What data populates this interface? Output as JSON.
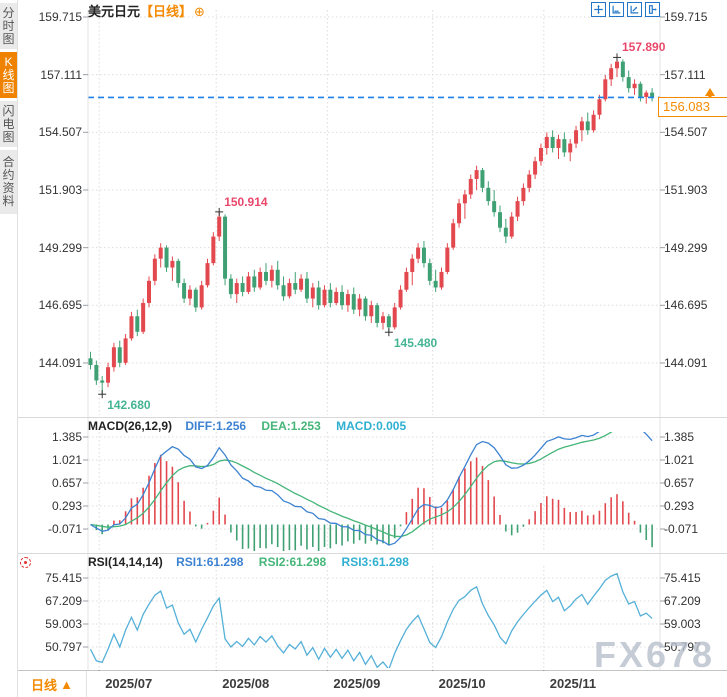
{
  "colors": {
    "up": "#e2484e",
    "down": "#3fa173",
    "ann_up": "#e9486b",
    "ann_down": "#45b493",
    "macd_diff": "#3d82d1",
    "macd_dea": "#45b578",
    "rsi_line": "#55b0d8",
    "accent_orange": "#f38a02",
    "icon_blue": "#2176c7",
    "price_line": "#1e80e8",
    "grid": "#dcdcdc"
  },
  "sidebar": {
    "items": [
      {
        "label": "分时图",
        "active": false
      },
      {
        "label": "K线图",
        "active": true
      },
      {
        "label": "闪电图",
        "active": false
      },
      {
        "label": "合约资料",
        "active": false
      }
    ]
  },
  "header": {
    "title": "美元日元",
    "period_tag": "【日线】",
    "expand_icon": "⊕"
  },
  "toolbar": {
    "items": [
      "pan",
      "fit",
      "scale",
      "exit"
    ]
  },
  "macd_panel": {
    "name": "MACD(26,12,9)",
    "diff": "DIFF:1.256",
    "dea": "DEA:1.253",
    "macd": "MACD:0.005"
  },
  "rsi_panel": {
    "name": "RSI(14,14,14)",
    "rsi1": "RSI1:61.298",
    "rsi2": "RSI2:61.298",
    "rsi3": "RSI3:61.298"
  },
  "bottom_bar": {
    "period": "日线",
    "arrow": "▲"
  },
  "price_box": {
    "label": "156.083"
  },
  "watermark": "FX678",
  "chart_data": {
    "type": "candlestick",
    "title": "美元日元【日线】",
    "y_axis_ticks": [
      "159.715",
      "157.111",
      "154.507",
      "151.903",
      "149.299",
      "146.695",
      "144.091"
    ],
    "x_axis_labels": [
      "2025/07",
      "2025/08",
      "2025/09",
      "2025/10",
      "2025/11"
    ],
    "month_start_indices": [
      2,
      22,
      41,
      59,
      78
    ],
    "current_price": 156.083,
    "annotations": [
      {
        "label": "142.680",
        "index": 2,
        "type": "low"
      },
      {
        "label": "150.914",
        "index": 22,
        "type": "high"
      },
      {
        "label": "145.480",
        "index": 51,
        "type": "low"
      },
      {
        "label": "157.890",
        "index": 90,
        "type": "high"
      }
    ],
    "candles_ohlc": [
      [
        144.3,
        144.6,
        143.8,
        144.0
      ],
      [
        144.0,
        144.2,
        143.1,
        143.3
      ],
      [
        143.3,
        143.5,
        142.68,
        143.2
      ],
      [
        143.2,
        144.1,
        143.0,
        143.9
      ],
      [
        143.9,
        145.0,
        143.7,
        144.8
      ],
      [
        144.8,
        145.1,
        143.9,
        144.1
      ],
      [
        144.1,
        145.4,
        144.0,
        145.2
      ],
      [
        145.2,
        146.4,
        145.1,
        146.2
      ],
      [
        146.2,
        146.5,
        145.3,
        145.5
      ],
      [
        145.5,
        147.0,
        145.4,
        146.8
      ],
      [
        146.8,
        148.0,
        146.6,
        147.8
      ],
      [
        147.8,
        149.0,
        147.6,
        148.8
      ],
      [
        148.8,
        149.5,
        148.4,
        149.3
      ],
      [
        149.3,
        149.4,
        148.2,
        148.4
      ],
      [
        148.4,
        148.9,
        147.8,
        148.7
      ],
      [
        148.7,
        148.8,
        147.5,
        147.7
      ],
      [
        147.7,
        147.9,
        146.8,
        147.0
      ],
      [
        147.0,
        147.6,
        146.7,
        147.4
      ],
      [
        147.4,
        147.5,
        146.4,
        146.6
      ],
      [
        146.6,
        147.8,
        146.5,
        147.6
      ],
      [
        147.6,
        148.8,
        147.5,
        148.6
      ],
      [
        148.6,
        150.0,
        148.5,
        149.8
      ],
      [
        149.8,
        150.914,
        149.6,
        150.7
      ],
      [
        150.7,
        150.8,
        147.6,
        147.9
      ],
      [
        147.9,
        148.1,
        147.0,
        147.2
      ],
      [
        147.2,
        147.9,
        146.8,
        147.7
      ],
      [
        147.7,
        148.0,
        147.1,
        147.3
      ],
      [
        147.3,
        148.2,
        147.2,
        148.0
      ],
      [
        148.0,
        148.3,
        147.3,
        147.5
      ],
      [
        147.5,
        148.4,
        147.4,
        148.2
      ],
      [
        148.2,
        148.6,
        147.6,
        147.8
      ],
      [
        147.8,
        148.5,
        147.5,
        148.3
      ],
      [
        148.3,
        148.7,
        147.4,
        147.6
      ],
      [
        147.6,
        148.0,
        146.9,
        147.1
      ],
      [
        147.1,
        147.9,
        147.0,
        147.7
      ],
      [
        147.7,
        148.2,
        147.2,
        147.4
      ],
      [
        147.4,
        148.1,
        147.3,
        147.9
      ],
      [
        147.9,
        148.2,
        146.8,
        147.0
      ],
      [
        147.0,
        147.7,
        146.6,
        147.5
      ],
      [
        147.5,
        147.8,
        146.5,
        146.7
      ],
      [
        146.7,
        147.6,
        146.6,
        147.4
      ],
      [
        147.4,
        147.7,
        146.6,
        146.8
      ],
      [
        146.8,
        147.5,
        146.7,
        147.3
      ],
      [
        147.3,
        147.6,
        146.5,
        146.7
      ],
      [
        146.7,
        147.4,
        146.4,
        147.2
      ],
      [
        147.2,
        147.5,
        146.3,
        146.5
      ],
      [
        146.5,
        147.2,
        146.2,
        147.0
      ],
      [
        147.0,
        147.1,
        146.0,
        146.2
      ],
      [
        146.2,
        146.9,
        145.9,
        146.7
      ],
      [
        146.7,
        146.8,
        145.7,
        145.9
      ],
      [
        145.9,
        146.4,
        145.6,
        146.2
      ],
      [
        146.2,
        146.3,
        145.48,
        145.7
      ],
      [
        145.7,
        146.8,
        145.6,
        146.6
      ],
      [
        146.6,
        147.6,
        146.5,
        147.4
      ],
      [
        147.4,
        148.4,
        147.3,
        148.2
      ],
      [
        148.2,
        149.0,
        147.6,
        148.8
      ],
      [
        148.8,
        149.5,
        148.6,
        149.3
      ],
      [
        149.3,
        149.6,
        148.4,
        148.6
      ],
      [
        148.6,
        148.8,
        147.6,
        147.8
      ],
      [
        147.8,
        148.3,
        147.3,
        147.5
      ],
      [
        147.5,
        148.4,
        147.4,
        148.2
      ],
      [
        148.2,
        149.5,
        148.1,
        149.3
      ],
      [
        149.3,
        150.6,
        149.2,
        150.4
      ],
      [
        150.4,
        151.5,
        150.2,
        151.3
      ],
      [
        151.3,
        151.9,
        150.6,
        151.7
      ],
      [
        151.7,
        152.6,
        151.5,
        152.4
      ],
      [
        152.4,
        153.0,
        151.9,
        152.8
      ],
      [
        152.8,
        152.9,
        151.8,
        152.0
      ],
      [
        152.0,
        152.3,
        151.2,
        151.4
      ],
      [
        151.4,
        151.9,
        150.7,
        150.9
      ],
      [
        150.9,
        151.2,
        150.0,
        150.2
      ],
      [
        150.2,
        150.6,
        149.5,
        149.8
      ],
      [
        149.8,
        150.9,
        149.7,
        150.7
      ],
      [
        150.7,
        151.6,
        150.5,
        151.4
      ],
      [
        151.4,
        152.2,
        151.2,
        152.0
      ],
      [
        152.0,
        152.8,
        151.8,
        152.6
      ],
      [
        152.6,
        153.4,
        152.4,
        153.2
      ],
      [
        153.2,
        154.0,
        153.0,
        153.8
      ],
      [
        153.8,
        154.5,
        153.5,
        154.3
      ],
      [
        154.3,
        154.6,
        153.6,
        153.8
      ],
      [
        153.8,
        154.4,
        153.3,
        154.2
      ],
      [
        154.2,
        154.5,
        153.4,
        153.6
      ],
      [
        153.6,
        154.2,
        153.2,
        154.0
      ],
      [
        154.0,
        154.8,
        153.8,
        154.6
      ],
      [
        154.6,
        155.2,
        154.1,
        155.0
      ],
      [
        155.0,
        155.4,
        154.4,
        154.6
      ],
      [
        154.6,
        155.5,
        154.5,
        155.3
      ],
      [
        155.3,
        156.2,
        155.1,
        156.0
      ],
      [
        156.0,
        157.1,
        155.9,
        156.9
      ],
      [
        156.9,
        157.6,
        156.6,
        157.4
      ],
      [
        157.4,
        157.89,
        157.0,
        157.7
      ],
      [
        157.7,
        157.8,
        156.8,
        157.0
      ],
      [
        157.0,
        157.3,
        156.3,
        156.5
      ],
      [
        156.5,
        156.9,
        156.2,
        156.7
      ],
      [
        156.7,
        156.8,
        155.9,
        156.1
      ],
      [
        156.1,
        156.4,
        155.8,
        156.3
      ],
      [
        156.3,
        156.5,
        155.9,
        156.083
      ]
    ],
    "macd": {
      "params": [
        26,
        12,
        9
      ],
      "diff_value": 1.256,
      "dea_value": 1.253,
      "macd_value": 0.005,
      "axis_ticks": [
        "1.385",
        "1.021",
        "0.657",
        "0.293",
        "-0.071"
      ]
    },
    "rsi": {
      "params": [
        14,
        14,
        14
      ],
      "rsi1_value": 61.298,
      "rsi2_value": 61.298,
      "rsi3_value": 61.298,
      "axis_ticks": [
        "75.415",
        "67.209",
        "59.003",
        "50.797"
      ]
    }
  }
}
